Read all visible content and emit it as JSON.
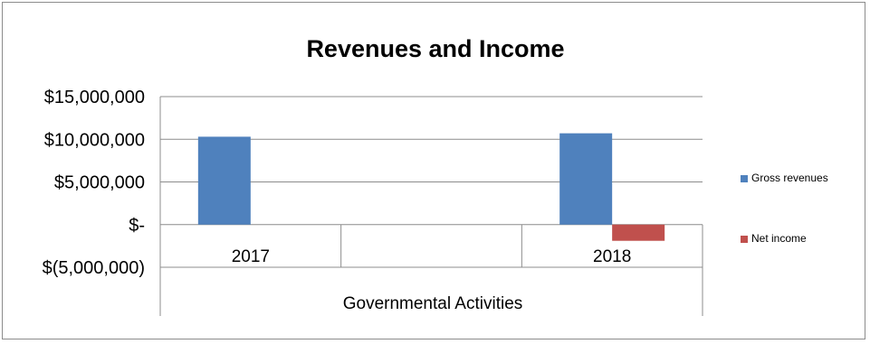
{
  "chart_data": {
    "type": "bar",
    "title": "Revenues and Income",
    "xlabel": "Governmental Activities",
    "ylabel": "",
    "categories": [
      "2017",
      "",
      "2018"
    ],
    "series": [
      {
        "name": "Gross revenues",
        "color": "#4f81bd",
        "values": [
          10300000,
          null,
          10700000
        ]
      },
      {
        "name": "Net income",
        "color": "#c0504d",
        "values": [
          null,
          null,
          -1900000
        ]
      }
    ],
    "ylim": [
      -5000000,
      15000000
    ],
    "yticks": [
      15000000,
      10000000,
      5000000,
      0,
      -5000000
    ],
    "ytick_labels": [
      "$15,000,000",
      "$10,000,000",
      "$5,000,000",
      "$-",
      "$(5,000,000)"
    ],
    "grid": true,
    "legend_position": "right"
  }
}
